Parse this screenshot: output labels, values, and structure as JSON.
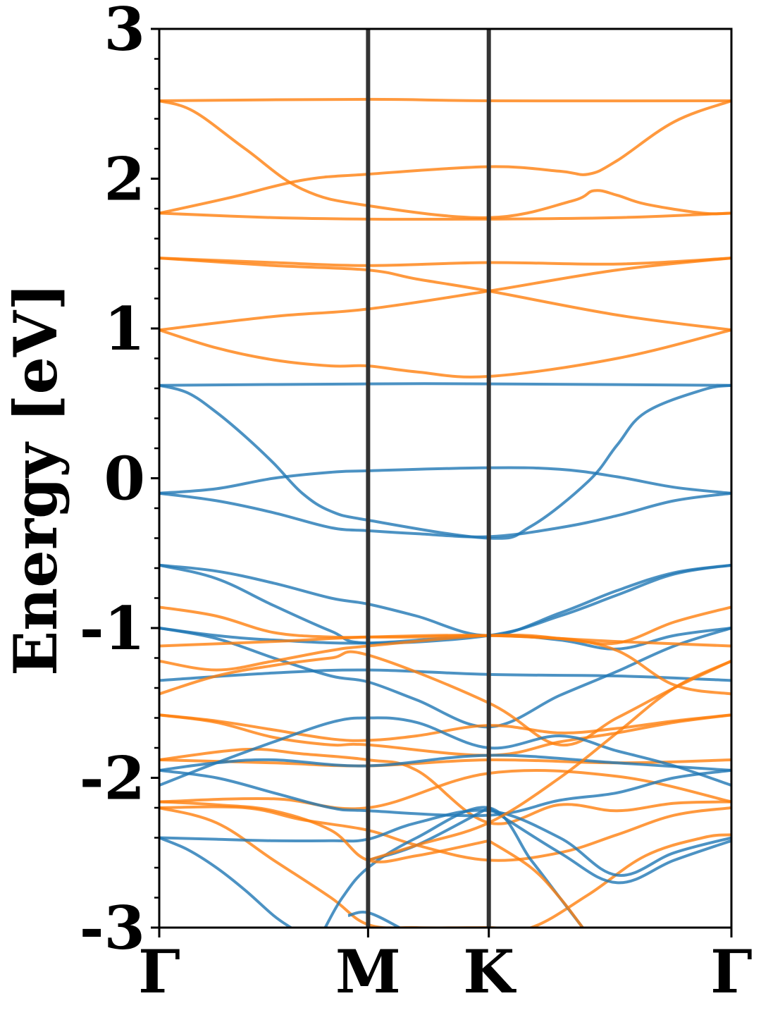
{
  "chart_data": {
    "type": "line",
    "title": "",
    "xlabel": "",
    "ylabel": "Energy [eV]",
    "ylim": [
      -3,
      3
    ],
    "yticks": [
      3,
      2,
      1,
      0,
      -1,
      -2,
      -3
    ],
    "ytick_labels": [
      "3",
      "2",
      "1",
      "0",
      "-1",
      "-2",
      "-3"
    ],
    "xlim": [
      0,
      1
    ],
    "kpoints": [
      {
        "label": "Γ",
        "x": 0
      },
      {
        "label": "M",
        "x": 0.365
      },
      {
        "label": "K",
        "x": 0.576
      },
      {
        "label": "Γ",
        "x": 1
      }
    ],
    "grid": false,
    "colors": {
      "spin_up": "#1f77b4",
      "spin_down": "#ff7f0e",
      "kpath_lines": "#333333"
    },
    "series": [
      {
        "group": "spin_down",
        "x": [
          0,
          0.365,
          0.576,
          1
        ],
        "values": [
          2.52,
          2.53,
          2.52,
          2.52
        ]
      },
      {
        "group": "spin_down",
        "x": [
          0,
          0.06,
          0.15,
          0.25,
          0.365,
          0.576,
          0.72,
          0.76,
          0.8,
          0.85,
          0.95,
          1
        ],
        "values": [
          2.52,
          2.45,
          2.2,
          1.93,
          1.82,
          1.74,
          1.85,
          1.92,
          1.89,
          1.83,
          1.77,
          1.77
        ]
      },
      {
        "group": "spin_down",
        "x": [
          0,
          0.12,
          0.25,
          0.365,
          0.576,
          0.7,
          0.75,
          0.8,
          0.9,
          1
        ],
        "values": [
          1.77,
          1.87,
          1.99,
          2.03,
          2.08,
          2.05,
          2.03,
          2.12,
          2.38,
          2.52
        ]
      },
      {
        "group": "spin_down",
        "x": [
          0,
          0.2,
          0.365,
          0.576,
          0.8,
          1
        ],
        "values": [
          1.77,
          1.74,
          1.73,
          1.73,
          1.74,
          1.77
        ]
      },
      {
        "group": "spin_down",
        "x": [
          0,
          0.2,
          0.365,
          0.45,
          0.576,
          0.8,
          1
        ],
        "values": [
          1.47,
          1.42,
          1.39,
          1.33,
          1.25,
          1.09,
          0.99
        ]
      },
      {
        "group": "spin_down",
        "x": [
          0,
          0.2,
          0.365,
          0.576,
          0.8,
          1
        ],
        "values": [
          1.47,
          1.44,
          1.42,
          1.44,
          1.43,
          1.47
        ]
      },
      {
        "group": "spin_down",
        "x": [
          0,
          0.2,
          0.365,
          0.576,
          0.8,
          1
        ],
        "values": [
          0.99,
          1.08,
          1.13,
          1.25,
          1.39,
          1.47
        ]
      },
      {
        "group": "spin_down",
        "x": [
          0,
          0.1,
          0.2,
          0.3,
          0.365,
          0.45,
          0.576,
          0.8,
          1
        ],
        "values": [
          0.99,
          0.87,
          0.79,
          0.75,
          0.75,
          0.71,
          0.68,
          0.8,
          0.99
        ]
      },
      {
        "group": "spin_up",
        "x": [
          0,
          0.365,
          0.576,
          1
        ],
        "values": [
          0.62,
          0.63,
          0.63,
          0.62
        ]
      },
      {
        "group": "spin_up",
        "x": [
          0,
          0.05,
          0.1,
          0.15,
          0.2,
          0.25,
          0.3,
          0.365,
          0.576,
          0.65,
          0.75,
          0.8,
          0.85,
          0.95,
          1
        ],
        "values": [
          0.62,
          0.57,
          0.44,
          0.28,
          0.1,
          -0.1,
          -0.22,
          -0.28,
          -0.4,
          -0.32,
          -0.02,
          0.22,
          0.44,
          0.59,
          0.62
        ]
      },
      {
        "group": "spin_up",
        "x": [
          0,
          0.1,
          0.2,
          0.3,
          0.365,
          0.576,
          0.7,
          0.8,
          0.9,
          1
        ],
        "values": [
          -0.1,
          -0.07,
          0.0,
          0.04,
          0.05,
          0.07,
          0.06,
          0.01,
          -0.06,
          -0.1
        ]
      },
      {
        "group": "spin_up",
        "x": [
          0,
          0.1,
          0.2,
          0.3,
          0.365,
          0.45,
          0.576,
          0.7,
          0.8,
          0.9,
          1
        ],
        "values": [
          -0.1,
          -0.15,
          -0.23,
          -0.33,
          -0.35,
          -0.37,
          -0.39,
          -0.33,
          -0.25,
          -0.15,
          -0.1
        ]
      },
      {
        "group": "spin_up",
        "x": [
          0,
          0.1,
          0.2,
          0.3,
          0.365,
          0.45,
          0.576,
          0.7,
          0.8,
          0.9,
          1
        ],
        "values": [
          -0.58,
          -0.62,
          -0.7,
          -0.8,
          -0.84,
          -0.92,
          -1.05,
          -0.9,
          -0.75,
          -0.63,
          -0.58
        ]
      },
      {
        "group": "spin_up",
        "x": [
          0,
          0.1,
          0.2,
          0.3,
          0.365,
          0.576,
          0.7,
          0.8,
          0.9,
          1
        ],
        "values": [
          -0.58,
          -0.67,
          -0.85,
          -1.02,
          -1.1,
          -1.05,
          -0.92,
          -0.78,
          -0.64,
          -0.58
        ]
      },
      {
        "group": "spin_up",
        "x": [
          0,
          0.1,
          0.2,
          0.365,
          0.576,
          0.7,
          0.8,
          0.9,
          1
        ],
        "values": [
          -1.0,
          -1.05,
          -1.08,
          -1.1,
          -1.05,
          -1.08,
          -1.14,
          -1.05,
          -1.0
        ]
      },
      {
        "group": "spin_up",
        "x": [
          0,
          0.1,
          0.2,
          0.3,
          0.365,
          0.45,
          0.576,
          0.7,
          0.8,
          0.9,
          1
        ],
        "values": [
          -1.0,
          -1.07,
          -1.2,
          -1.32,
          -1.36,
          -1.48,
          -1.66,
          -1.45,
          -1.29,
          -1.12,
          -1.0
        ]
      },
      {
        "group": "spin_up",
        "x": [
          0,
          0.2,
          0.365,
          0.576,
          0.8,
          1
        ],
        "values": [
          -1.35,
          -1.3,
          -1.28,
          -1.31,
          -1.32,
          -1.35
        ]
      },
      {
        "group": "spin_down",
        "x": [
          0,
          0.2,
          0.365,
          0.576,
          0.8,
          1
        ],
        "values": [
          -1.12,
          -1.09,
          -1.06,
          -1.05,
          -1.09,
          -1.12
        ]
      },
      {
        "group": "spin_down",
        "x": [
          0,
          0.1,
          0.2,
          0.3,
          0.365,
          0.45,
          0.576,
          0.7,
          0.8,
          0.9,
          1
        ],
        "values": [
          -0.86,
          -0.92,
          -1.03,
          -1.06,
          -1.06,
          -1.06,
          -1.05,
          -1.07,
          -1.1,
          -0.96,
          -0.86
        ]
      },
      {
        "group": "spin_down",
        "x": [
          0,
          0.1,
          0.2,
          0.3,
          0.365,
          0.576,
          0.7,
          0.8,
          0.9,
          1
        ],
        "values": [
          -1.22,
          -1.28,
          -1.22,
          -1.15,
          -1.12,
          -1.05,
          -1.07,
          -1.15,
          -1.38,
          -1.44
        ]
      },
      {
        "group": "spin_down",
        "x": [
          0,
          0.1,
          0.2,
          0.3,
          0.365,
          0.576,
          0.7,
          0.8,
          0.9,
          1
        ],
        "values": [
          -1.44,
          -1.32,
          -1.25,
          -1.2,
          -1.18,
          -1.5,
          -1.78,
          -1.6,
          -1.4,
          -1.22
        ]
      },
      {
        "group": "spin_down",
        "x": [
          0,
          0.1,
          0.2,
          0.3,
          0.365,
          0.45,
          0.576,
          0.7,
          0.8,
          0.9,
          1
        ],
        "values": [
          -1.58,
          -1.62,
          -1.68,
          -1.74,
          -1.75,
          -1.72,
          -1.65,
          -1.7,
          -1.67,
          -1.62,
          -1.58
        ]
      },
      {
        "group": "spin_down",
        "x": [
          0,
          0.1,
          0.2,
          0.3,
          0.365,
          0.576,
          0.7,
          0.8,
          0.9,
          1
        ],
        "values": [
          -1.58,
          -1.63,
          -1.73,
          -1.78,
          -1.78,
          -1.85,
          -1.76,
          -1.7,
          -1.63,
          -1.58
        ]
      },
      {
        "group": "spin_down",
        "x": [
          0,
          0.2,
          0.365,
          0.576,
          0.8,
          1
        ],
        "values": [
          -1.88,
          -1.9,
          -1.92,
          -1.88,
          -1.9,
          -1.88
        ]
      },
      {
        "group": "spin_down",
        "x": [
          0,
          0.2,
          0.365,
          0.576,
          0.8,
          1
        ],
        "values": [
          -2.16,
          -2.14,
          -2.2,
          -1.97,
          -1.99,
          -2.16
        ]
      },
      {
        "group": "spin_down",
        "x": [
          0,
          0.15,
          0.25,
          0.365,
          0.45,
          0.576,
          0.7,
          0.8,
          0.9,
          1
        ],
        "values": [
          -1.88,
          -1.81,
          -1.84,
          -1.88,
          -1.95,
          -2.3,
          -2.18,
          -2.22,
          -2.17,
          -2.16
        ]
      },
      {
        "group": "spin_down",
        "x": [
          0,
          0.15,
          0.25,
          0.365,
          0.45,
          0.576,
          0.7,
          0.8,
          0.9,
          1
        ],
        "values": [
          -2.2,
          -2.2,
          -2.28,
          -2.35,
          -2.45,
          -2.55,
          -2.5,
          -2.38,
          -2.25,
          -2.2
        ]
      },
      {
        "group": "spin_down",
        "x": [
          0,
          0.1,
          0.2,
          0.3,
          0.365,
          0.45,
          0.576,
          0.65,
          0.75,
          0.85,
          0.95,
          1
        ],
        "values": [
          -2.2,
          -2.3,
          -2.55,
          -2.8,
          -2.98,
          -3.0,
          -3.0,
          -3.0,
          -2.78,
          -2.52,
          -2.4,
          -2.38
        ]
      },
      {
        "group": "spin_up",
        "x": [
          0,
          0.1,
          0.2,
          0.365,
          0.576,
          0.8,
          1
        ],
        "values": [
          -1.95,
          -1.9,
          -1.88,
          -1.92,
          -1.85,
          -1.9,
          -1.95
        ]
      },
      {
        "group": "spin_up",
        "x": [
          0,
          0.1,
          0.2,
          0.3,
          0.365,
          0.45,
          0.576,
          0.7,
          0.8,
          0.9,
          1
        ],
        "values": [
          -2.05,
          -1.9,
          -1.76,
          -1.63,
          -1.6,
          -1.63,
          -1.8,
          -1.72,
          -1.82,
          -1.92,
          -2.05
        ]
      },
      {
        "group": "spin_up",
        "x": [
          0,
          0.1,
          0.2,
          0.3,
          0.365,
          0.576,
          0.7,
          0.8,
          0.9,
          1
        ],
        "values": [
          -1.95,
          -2.0,
          -2.1,
          -2.2,
          -2.22,
          -2.25,
          -2.15,
          -2.1,
          -2.0,
          -1.95
        ]
      },
      {
        "group": "spin_up",
        "x": [
          0,
          0.1,
          0.2,
          0.3,
          0.365,
          0.45,
          0.576,
          0.7,
          0.8,
          0.9,
          1
        ],
        "values": [
          -2.4,
          -2.41,
          -2.42,
          -2.42,
          -2.41,
          -2.3,
          -2.22,
          -2.4,
          -2.65,
          -2.5,
          -2.4
        ]
      },
      {
        "group": "spin_up",
        "x": [
          0,
          0.05,
          0.1,
          0.15,
          0.2,
          0.23
        ],
        "values": [
          -2.4,
          -2.48,
          -2.6,
          -2.75,
          -2.92,
          -3.0
        ]
      },
      {
        "group": "spin_up",
        "x": [
          0.29,
          0.32,
          0.365,
          0.45,
          0.576,
          0.65,
          0.7,
          0.74
        ],
        "values": [
          -3.0,
          -2.8,
          -2.6,
          -2.4,
          -2.2,
          -2.55,
          -2.8,
          -3.0
        ]
      },
      {
        "group": "spin_up",
        "x": [
          0.365,
          0.45,
          0.576
        ],
        "values": [
          -2.55,
          -2.45,
          -2.2
        ]
      },
      {
        "group": "spin_up",
        "x": [
          0.33,
          0.365,
          0.42
        ],
        "values": [
          -2.92,
          -2.9,
          -3.0
        ]
      },
      {
        "group": "spin_up",
        "x": [
          0.576,
          0.7,
          0.8,
          0.9,
          1
        ],
        "values": [
          -2.2,
          -2.5,
          -2.7,
          -2.55,
          -2.42
        ]
      },
      {
        "group": "spin_down",
        "x": [
          0.365,
          0.45,
          0.576,
          0.7,
          0.8,
          0.9,
          1
        ],
        "values": [
          -2.55,
          -2.45,
          -2.3,
          -2.0,
          -1.7,
          -1.4,
          -1.22
        ]
      },
      {
        "group": "spin_down",
        "x": [
          0,
          0.1,
          0.2,
          0.3,
          0.365,
          0.45,
          0.576
        ],
        "values": [
          -2.16,
          -2.18,
          -2.22,
          -2.35,
          -2.55,
          -2.52,
          -2.42
        ]
      },
      {
        "group": "spin_down",
        "x": [
          0.576,
          0.65,
          0.7,
          0.74
        ],
        "values": [
          -2.42,
          -2.6,
          -2.8,
          -3.0
        ]
      }
    ]
  }
}
